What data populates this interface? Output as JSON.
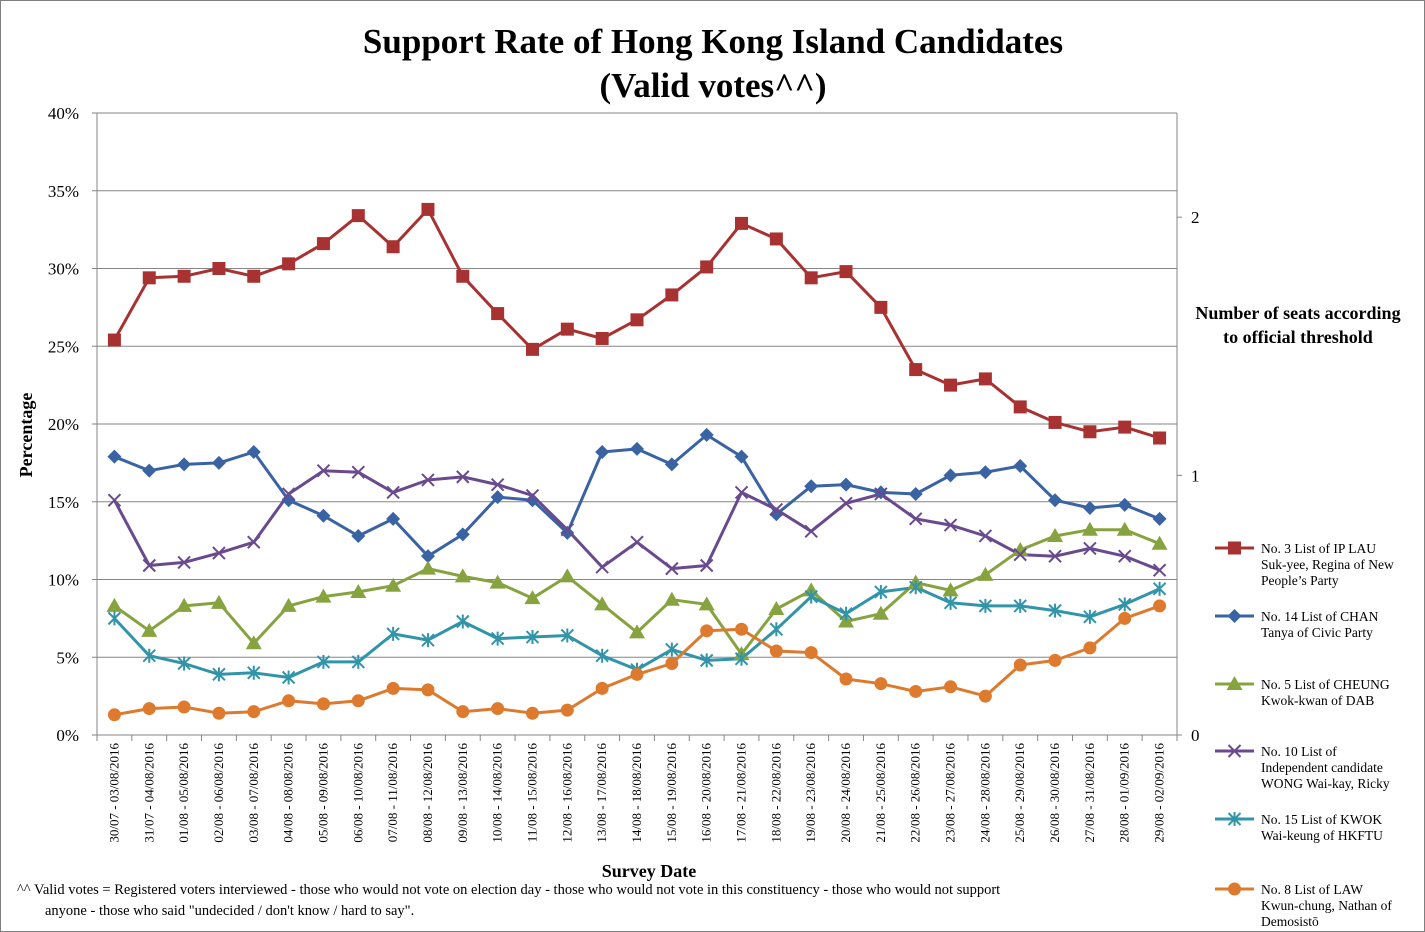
{
  "chart_data": {
    "type": "line",
    "title": [
      "Support Rate of Hong Kong Island Candidates",
      "(Valid votes^^)"
    ],
    "xlabel": "Survey Date",
    "ylabel": "Percentage",
    "ylim": [
      0,
      40
    ],
    "yticks": [
      "0%",
      "5%",
      "10%",
      "15%",
      "20%",
      "25%",
      "30%",
      "35%",
      "40%"
    ],
    "y2label": [
      "Number of seats according",
      "to official threshold"
    ],
    "y2ticks": [
      "0",
      "1",
      "2"
    ],
    "y2_values_pct": [
      0,
      16.7,
      33.3
    ],
    "grid": true,
    "legend_position": "right",
    "categories": [
      "30/07 - 03/08/2016",
      "31/07 - 04/08/2016",
      "01/08 - 05/08/2016",
      "02/08 - 06/08/2016",
      "03/08 - 07/08/2016",
      "04/08 - 08/08/2016",
      "05/08 - 09/08/2016",
      "06/08 - 10/08/2016",
      "07/08 - 11/08/2016",
      "08/08 - 12/08/2016",
      "09/08 - 13/08/2016",
      "10/08 - 14/08/2016",
      "11/08 - 15/08/2016",
      "12/08 - 16/08/2016",
      "13/08 - 17/08/2016",
      "14/08 - 18/08/2016",
      "15/08 - 19/08/2016",
      "16/08 - 20/08/2016",
      "17/08 - 21/08/2016",
      "18/08 - 22/08/2016",
      "19/08 - 23/08/2016",
      "20/08 - 24/08/2016",
      "21/08 - 25/08/2016",
      "22/08 - 26/08/2016",
      "23/08 - 27/08/2016",
      "24/08 - 28/08/2016",
      "25/08 - 29/08/2016",
      "26/08 - 30/08/2016",
      "27/08 - 31/08/2016",
      "28/08 - 01/09/2016",
      "29/08 - 02/09/2016"
    ],
    "series": [
      {
        "name": "No. 3 List of IP LAU Suk-yee, Regina of New People’s Party",
        "legend_lines": [
          "No. 3 List of IP LAU",
          "Suk-yee, Regina of New",
          "People’s Party"
        ],
        "color": "#a83232",
        "marker": "square",
        "values": [
          25.4,
          29.4,
          29.5,
          30.0,
          29.5,
          30.3,
          31.6,
          33.4,
          31.4,
          33.8,
          29.5,
          27.1,
          24.8,
          26.1,
          25.5,
          26.7,
          28.3,
          30.1,
          32.9,
          31.9,
          29.4,
          29.8,
          27.5,
          23.5,
          22.5,
          22.9,
          21.1,
          20.1,
          19.5,
          19.8,
          19.1
        ]
      },
      {
        "name": "No. 14 List of CHAN Tanya of Civic Party",
        "legend_lines": [
          "No. 14 List of CHAN",
          "Tanya of Civic Party"
        ],
        "color": "#3a63a3",
        "marker": "diamond",
        "values": [
          17.9,
          17.0,
          17.4,
          17.5,
          18.2,
          15.1,
          14.1,
          12.8,
          13.9,
          11.5,
          12.9,
          15.3,
          15.1,
          13.0,
          18.2,
          18.4,
          17.4,
          19.3,
          17.9,
          14.2,
          16.0,
          16.1,
          15.6,
          15.5,
          16.7,
          16.9,
          17.3,
          15.1,
          14.6,
          14.8,
          13.9
        ]
      },
      {
        "name": "No. 5 List of CHEUNG Kwok-kwan of DAB",
        "legend_lines": [
          "No. 5 List of CHEUNG",
          "Kwok-kwan of DAB"
        ],
        "color": "#86a33f",
        "marker": "triangle",
        "values": [
          8.3,
          6.7,
          8.3,
          8.5,
          5.9,
          8.3,
          8.9,
          9.2,
          9.6,
          10.7,
          10.2,
          9.8,
          8.8,
          10.2,
          8.4,
          6.6,
          8.7,
          8.4,
          5.2,
          8.1,
          9.3,
          7.3,
          7.8,
          9.8,
          9.3,
          10.3,
          11.9,
          12.8,
          13.2,
          13.2,
          12.3
        ]
      },
      {
        "name": "No. 10 List of Independent candidate WONG Wai-kay, Ricky",
        "legend_lines": [
          "No. 10 List of",
          "Independent candidate",
          "WONG Wai-kay, Ricky"
        ],
        "color": "#6a4a8e",
        "marker": "x",
        "values": [
          15.1,
          10.9,
          11.1,
          11.7,
          12.4,
          15.5,
          17.0,
          16.9,
          15.6,
          16.4,
          16.6,
          16.1,
          15.4,
          13.2,
          10.8,
          12.4,
          10.7,
          10.9,
          15.6,
          14.5,
          13.1,
          14.9,
          15.5,
          13.9,
          13.5,
          12.8,
          11.6,
          11.5,
          12.0,
          11.5,
          10.6
        ]
      },
      {
        "name": "No. 15 List of KWOK Wai-keung of HKFTU",
        "legend_lines": [
          "No. 15 List of KWOK",
          "Wai-keung of HKFTU"
        ],
        "color": "#3294a8",
        "marker": "star",
        "values": [
          7.5,
          5.1,
          4.6,
          3.9,
          4.0,
          3.7,
          4.7,
          4.7,
          6.5,
          6.1,
          7.3,
          6.2,
          6.3,
          6.4,
          5.1,
          4.2,
          5.5,
          4.8,
          4.9,
          6.8,
          8.9,
          7.8,
          9.2,
          9.5,
          8.5,
          8.3,
          8.3,
          8.0,
          7.6,
          8.4,
          9.4
        ]
      },
      {
        "name": "No. 8 List of LAW Kwun-chung, Nathan of Demosistō",
        "legend_lines": [
          "No. 8 List of LAW",
          "Kwun-chung, Nathan of",
          "Demosistō"
        ],
        "color": "#dd7a2e",
        "marker": "circle",
        "values": [
          1.3,
          1.7,
          1.8,
          1.4,
          1.5,
          2.2,
          2.0,
          2.2,
          3.0,
          2.9,
          1.5,
          1.7,
          1.4,
          1.6,
          3.0,
          3.9,
          4.6,
          6.7,
          6.8,
          5.4,
          5.3,
          3.6,
          3.3,
          2.8,
          3.1,
          2.5,
          4.5,
          4.8,
          5.6,
          7.5,
          8.3
        ]
      }
    ],
    "footnote": [
      "^^ Valid votes = Registered voters interviewed - those who would not vote on election day - those who would not vote in this constituency - those who would not support",
      "anyone - those who said \"undecided / don't know / hard to say\"."
    ]
  }
}
